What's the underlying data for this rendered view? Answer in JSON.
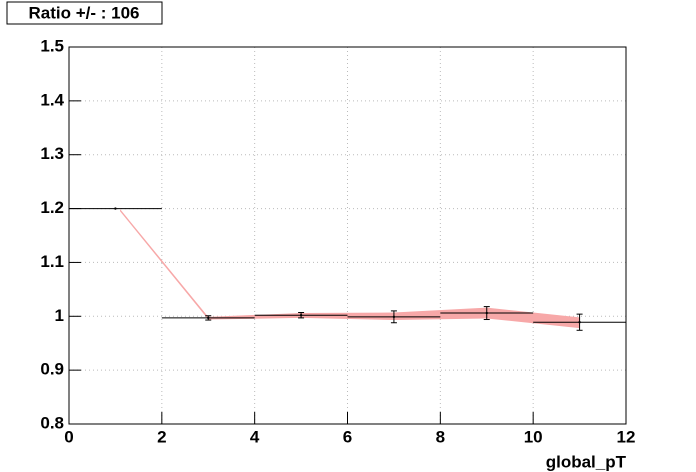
{
  "chart_data": {
    "type": "errorbar",
    "title": "Ratio +/- : 106",
    "x_label": "global_pT",
    "x": [
      1,
      3,
      5,
      7,
      9,
      11
    ],
    "xerr": [
      1,
      1,
      1,
      1,
      1,
      1
    ],
    "values": [
      1.2,
      0.997,
      1.002,
      0.999,
      1.006,
      0.989
    ],
    "errors": [
      0,
      0.004,
      0.005,
      0.011,
      0.012,
      0.015
    ],
    "color": "#000000",
    "band": {
      "x": [
        1.1,
        3,
        5,
        7,
        9,
        11
      ],
      "lower": [
        1.195,
        0.994,
        0.997,
        0.993,
        0.996,
        0.978
      ],
      "upper": [
        1.199,
        0.999,
        1.006,
        1.007,
        1.016,
        0.998
      ],
      "color": "#f7a8a8"
    },
    "xlim": [
      0,
      12
    ],
    "xticks": [
      0,
      2,
      4,
      6,
      8,
      10,
      12
    ],
    "ylim": [
      0.8,
      1.5
    ],
    "yticks": [
      0.8,
      0.9,
      1,
      1.1,
      1.2,
      1.3,
      1.4,
      1.5
    ],
    "grid": true
  }
}
